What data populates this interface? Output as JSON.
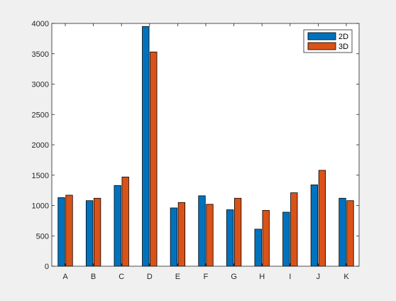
{
  "chart_data": {
    "type": "bar",
    "title": "",
    "xlabel": "",
    "ylabel": "",
    "categories": [
      "A",
      "B",
      "C",
      "D",
      "E",
      "F",
      "G",
      "H",
      "I",
      "J",
      "K"
    ],
    "series": [
      {
        "name": "2D",
        "values": [
          1130,
          1080,
          1330,
          3950,
          960,
          1160,
          930,
          610,
          890,
          1340,
          1120
        ]
      },
      {
        "name": "3D",
        "values": [
          1170,
          1120,
          1470,
          3530,
          1050,
          1020,
          1120,
          920,
          1210,
          1580,
          1080
        ]
      }
    ],
    "ylim": [
      0,
      4000
    ],
    "yticks": [
      0,
      500,
      1000,
      1500,
      2000,
      2500,
      3000,
      3500,
      4000
    ],
    "grid": false,
    "legend_position": "top-right",
    "colors": {
      "series": [
        "#0072BD",
        "#D95319"
      ],
      "axes_background": "#ffffff",
      "figure_background": "#f0f0f0",
      "axis_line": "#262626"
    }
  }
}
